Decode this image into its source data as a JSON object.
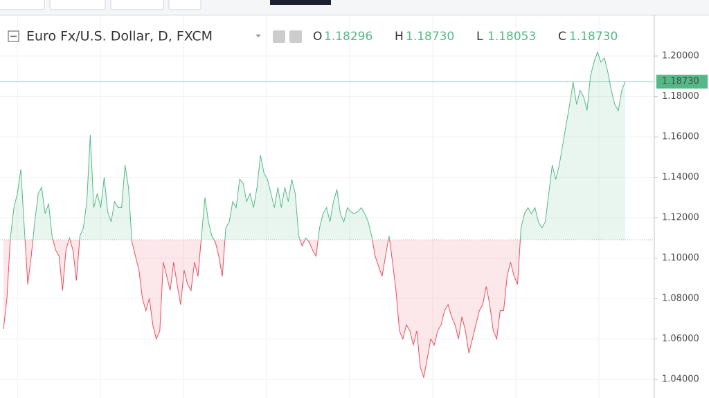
{
  "chart_data": {
    "type": "baseline",
    "title": "Euro Fx/U.S. Dollar, D, FXCM",
    "ohlc": [
      {
        "name": "O",
        "value": 1.18296,
        "label": "1.18296"
      },
      {
        "name": "H",
        "value": 1.1873,
        "label": "1.18730"
      },
      {
        "name": "L",
        "value": 1.18053,
        "label": "1.18053"
      },
      {
        "name": "C",
        "value": 1.1873,
        "label": "1.18730"
      }
    ],
    "last": {
      "value": 1.1873,
      "label": "1.18730"
    },
    "baseline": 1.1091,
    "up_color": "#53b987",
    "down_color": "#eb4d5c",
    "values": [
      1.065,
      1.08,
      1.11,
      1.125,
      1.132,
      1.144,
      1.115,
      1.087,
      1.101,
      1.118,
      1.132,
      1.135,
      1.122,
      1.127,
      1.111,
      1.104,
      1.101,
      1.084,
      1.104,
      1.11,
      1.104,
      1.089,
      1.111,
      1.115,
      1.128,
      1.161,
      1.125,
      1.132,
      1.125,
      1.14,
      1.123,
      1.118,
      1.128,
      1.125,
      1.125,
      1.146,
      1.135,
      1.108,
      1.101,
      1.094,
      1.08,
      1.074,
      1.08,
      1.067,
      1.06,
      1.064,
      1.098,
      1.091,
      1.084,
      1.098,
      1.087,
      1.077,
      1.094,
      1.087,
      1.084,
      1.098,
      1.091,
      1.111,
      1.13,
      1.118,
      1.111,
      1.108,
      1.101,
      1.091,
      1.115,
      1.118,
      1.128,
      1.125,
      1.139,
      1.137,
      1.128,
      1.132,
      1.125,
      1.135,
      1.151,
      1.142,
      1.139,
      1.132,
      1.125,
      1.135,
      1.125,
      1.135,
      1.128,
      1.139,
      1.132,
      1.111,
      1.106,
      1.11,
      1.108,
      1.104,
      1.101,
      1.115,
      1.122,
      1.125,
      1.118,
      1.128,
      1.134,
      1.122,
      1.118,
      1.125,
      1.123,
      1.122,
      1.123,
      1.125,
      1.122,
      1.118,
      1.111,
      1.101,
      1.096,
      1.091,
      1.101,
      1.111,
      1.098,
      1.084,
      1.064,
      1.06,
      1.067,
      1.064,
      1.057,
      1.064,
      1.046,
      1.041,
      1.05,
      1.06,
      1.057,
      1.064,
      1.067,
      1.074,
      1.077,
      1.071,
      1.067,
      1.06,
      1.071,
      1.064,
      1.053,
      1.06,
      1.067,
      1.074,
      1.077,
      1.086,
      1.077,
      1.064,
      1.06,
      1.074,
      1.074,
      1.091,
      1.098,
      1.091,
      1.087,
      1.115,
      1.122,
      1.125,
      1.122,
      1.125,
      1.118,
      1.115,
      1.118,
      1.132,
      1.146,
      1.139,
      1.146,
      1.156,
      1.166,
      1.176,
      1.187,
      1.176,
      1.183,
      1.18,
      1.173,
      1.19,
      1.197,
      1.202,
      1.197,
      1.199,
      1.192,
      1.183,
      1.176,
      1.173,
      1.183,
      1.1873
    ],
    "ylim": [
      1.0308,
      1.2202
    ],
    "yticks": [
      {
        "value": 1.04,
        "label": "1.04000"
      },
      {
        "value": 1.06,
        "label": "1.06000"
      },
      {
        "value": 1.08,
        "label": "1.08000"
      },
      {
        "value": 1.1,
        "label": "1.10000"
      },
      {
        "value": 1.12,
        "label": "1.12000"
      },
      {
        "value": 1.14,
        "label": "1.14000"
      },
      {
        "value": 1.16,
        "label": "1.16000"
      },
      {
        "value": 1.18,
        "label": "1.18000"
      },
      {
        "value": 1.2,
        "label": "1.20000"
      }
    ],
    "grid": true
  }
}
